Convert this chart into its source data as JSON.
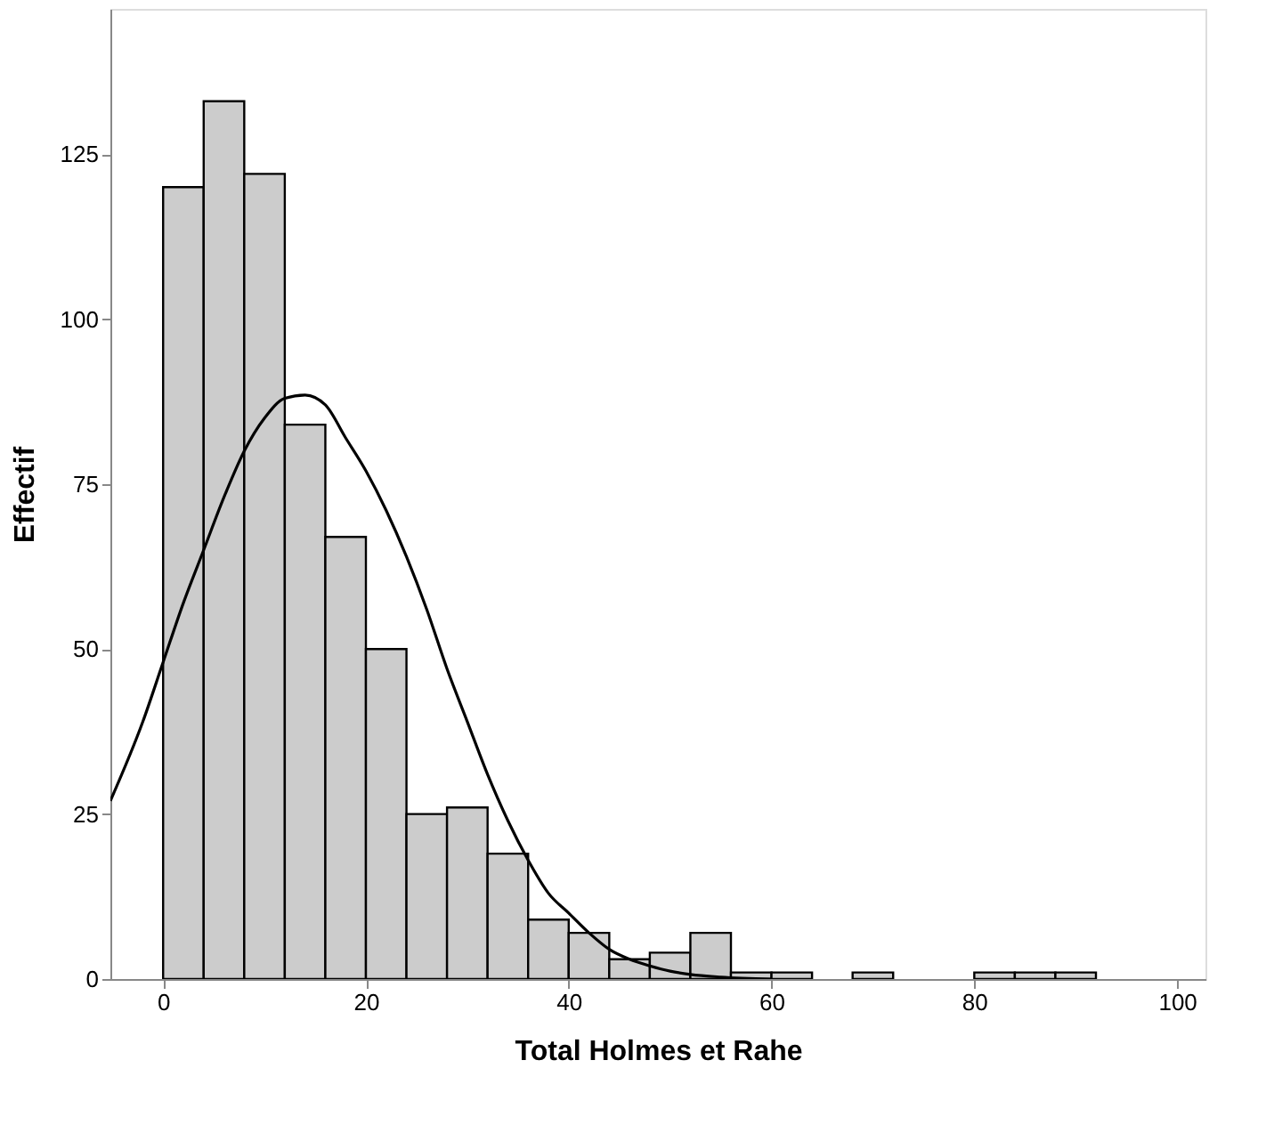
{
  "chart_data": {
    "type": "histogram",
    "xlabel": "Total Holmes et Rahe",
    "ylabel": "Effectif",
    "bins": [
      0,
      4,
      8,
      12,
      16,
      20,
      24,
      28,
      32,
      36,
      40,
      44,
      48,
      52,
      56,
      60,
      64,
      68,
      72,
      76,
      80,
      84,
      88,
      92
    ],
    "values": [
      120,
      133,
      122,
      84,
      67,
      50,
      25,
      26,
      19,
      9,
      7,
      3,
      4,
      7,
      1,
      1,
      0,
      1,
      0,
      0,
      1,
      1,
      1
    ],
    "color": "#cccccc",
    "xlim": [
      -5.2,
      102.8
    ],
    "xticks": [
      0,
      20,
      40,
      60,
      80,
      100
    ],
    "ylim": [
      0,
      147
    ],
    "yticks": [
      0,
      25,
      50,
      75,
      100,
      125
    ],
    "grid": false,
    "series": [
      {
        "type": "line",
        "color": "#000000",
        "x": [
          -5.2,
          -2,
          0,
          2,
          4,
          6,
          8,
          10,
          12,
          14,
          16,
          18,
          20,
          22,
          24,
          26,
          28,
          30,
          32,
          34,
          36,
          38,
          40,
          42,
          44,
          46,
          48,
          50,
          52,
          55,
          60
        ],
        "values": [
          27,
          39,
          48,
          57,
          65,
          73,
          80,
          85,
          88,
          88.5,
          87,
          82,
          77,
          71,
          64,
          56,
          47,
          39,
          31,
          24,
          18,
          13,
          10,
          7,
          4.5,
          3,
          2,
          1.2,
          0.7,
          0.3,
          0
        ]
      }
    ]
  }
}
